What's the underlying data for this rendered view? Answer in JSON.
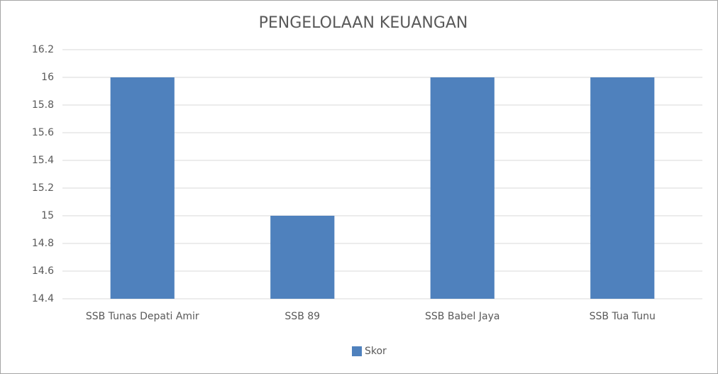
{
  "chart_data": {
    "type": "bar",
    "title": "PENGELOLAAN KEUANGAN",
    "categories": [
      "SSB Tunas Depati Amir",
      "SSB 89",
      "SSB Babel Jaya",
      "SSB Tua Tunu"
    ],
    "series": [
      {
        "name": "Skor",
        "color": "#4f81bd",
        "values": [
          16,
          15,
          16,
          16
        ]
      }
    ],
    "ylim": [
      14.4,
      16.2
    ],
    "yticks": [
      14.4,
      14.6,
      14.8,
      15,
      15.2,
      15.4,
      15.6,
      15.8,
      16,
      16.2
    ],
    "grid": true,
    "legend": "bottom"
  }
}
